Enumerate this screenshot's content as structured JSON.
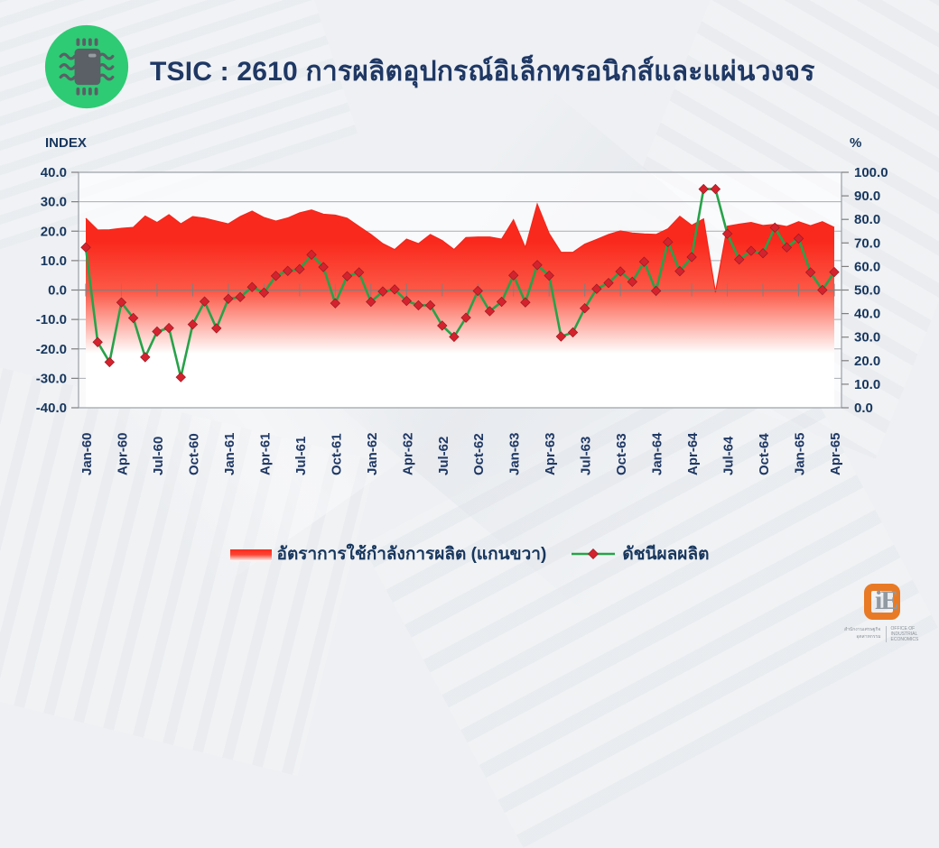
{
  "header": {
    "title": "TSIC : 2610 การผลิตอุปกรณ์อิเล็กทรอนิกส์และแผ่นวงจร",
    "icon": "microchip-icon"
  },
  "chart_data": {
    "type": "line+area",
    "x": [
      "Jan-60",
      "Feb-60",
      "Mar-60",
      "Apr-60",
      "May-60",
      "Jun-60",
      "Jul-60",
      "Aug-60",
      "Sep-60",
      "Oct-60",
      "Nov-60",
      "Dec-60",
      "Jan-61",
      "Feb-61",
      "Mar-61",
      "Apr-61",
      "May-61",
      "Jun-61",
      "Jul-61",
      "Aug-61",
      "Sep-61",
      "Oct-61",
      "Nov-61",
      "Dec-61",
      "Jan-62",
      "Feb-62",
      "Mar-62",
      "Apr-62",
      "May-62",
      "Jun-62",
      "Jul-62",
      "Aug-62",
      "Sep-62",
      "Oct-62",
      "Nov-62",
      "Dec-62",
      "Jan-63",
      "Feb-63",
      "Mar-63",
      "Apr-63",
      "May-63",
      "Jun-63",
      "Jul-63",
      "Aug-63",
      "Sep-63",
      "Oct-63",
      "Nov-63",
      "Dec-63",
      "Jan-64",
      "Feb-64",
      "Mar-64",
      "Apr-64",
      "May-64",
      "Jun-64",
      "Jul-64",
      "Aug-64",
      "Sep-64",
      "Oct-64",
      "Nov-64",
      "Dec-64",
      "Jan-65",
      "Feb-65",
      "Mar-65",
      "Apr-65"
    ],
    "x_tick_labels": [
      "Jan-60",
      "Apr-60",
      "Jul-60",
      "Oct-60",
      "Jan-61",
      "Apr-61",
      "Jul-61",
      "Oct-61",
      "Jan-62",
      "Apr-62",
      "Jul-62",
      "Oct-62",
      "Jan-63",
      "Apr-63",
      "Jul-63",
      "Oct-63",
      "Jan-64",
      "Apr-64",
      "Jul-64",
      "Oct-64",
      "Jan-65",
      "Apr-65"
    ],
    "left_axis": {
      "title": "INDEX",
      "min": -40,
      "max": 40,
      "step": 10,
      "tick_labels": [
        "40.0",
        "30.0",
        "20.0",
        "10.0",
        "0.0",
        "-10.0",
        "-20.0",
        "-30.0",
        "-40.0"
      ]
    },
    "right_axis": {
      "title": "%",
      "min": 0,
      "max": 100,
      "step": 10,
      "tick_labels": [
        "100.0",
        "90.0",
        "80.0",
        "70.0",
        "60.0",
        "50.0",
        "40.0",
        "30.0",
        "20.0",
        "10.0",
        "0.0"
      ]
    },
    "series": [
      {
        "name": "อัตราการใช้กำลังการผลิต (แกนขวา)",
        "type": "area",
        "axis": "right",
        "color": "#fa291d",
        "fade_to": "#ffffff",
        "values": [
          80.5,
          75.5,
          75.6,
          76.2,
          76.6,
          81.4,
          78.7,
          82.0,
          78.1,
          81.2,
          80.5,
          79.3,
          78.1,
          81.2,
          83.5,
          80.8,
          79.3,
          80.6,
          82.8,
          84.0,
          82.2,
          81.8,
          80.5,
          77.0,
          73.6,
          69.7,
          67.2,
          71.6,
          69.7,
          73.6,
          71.0,
          67.2,
          72.3,
          72.5,
          72.5,
          71.6,
          79.8,
          68.0,
          86.5,
          74.0,
          66.0,
          66.0,
          69.5,
          71.5,
          73.6,
          75.1,
          74.2,
          73.8,
          73.6,
          76.0,
          81.3,
          77.5,
          80.2,
          49.0,
          77.1,
          78.0,
          78.7,
          77.4,
          77.9,
          77.0,
          79.0,
          77.3,
          79.0,
          76.6
        ]
      },
      {
        "name": "ดัชนีผลผลิต",
        "type": "line",
        "axis": "left",
        "color": "#27a249",
        "marker": "diamond",
        "marker_color": "#d4232e",
        "values": [
          14.5,
          -17.7,
          -24.5,
          -4.2,
          -9.5,
          -22.8,
          -14.1,
          -12.9,
          -29.6,
          -11.7,
          -3.9,
          -13.0,
          -3.0,
          -2.4,
          1.0,
          -0.9,
          4.8,
          6.5,
          7.1,
          12.0,
          7.8,
          -4.5,
          4.7,
          6.0,
          -4.0,
          -0.5,
          0.2,
          -3.7,
          -5.2,
          -5.2,
          -12.1,
          -15.9,
          -9.4,
          -0.3,
          -7.2,
          -4.0,
          5.0,
          -4.2,
          8.5,
          4.9,
          -15.8,
          -14.4,
          -6.2,
          0.4,
          2.4,
          6.3,
          2.8,
          9.6,
          -0.3,
          16.3,
          6.4,
          11.2,
          34.3,
          34.3,
          19.1,
          10.4,
          13.3,
          12.5,
          21.2,
          14.5,
          17.5,
          6.0,
          0.0,
          6.1
        ]
      }
    ],
    "grid": "horizontal",
    "legend_position": "bottom"
  },
  "footer_logo": {
    "monogram": "iE",
    "thai_name": "สำนักงานเศรษฐกิจอุตสาหกรรม",
    "english_name": "OFFICE OF INDUSTRIAL ECONOMICS"
  }
}
